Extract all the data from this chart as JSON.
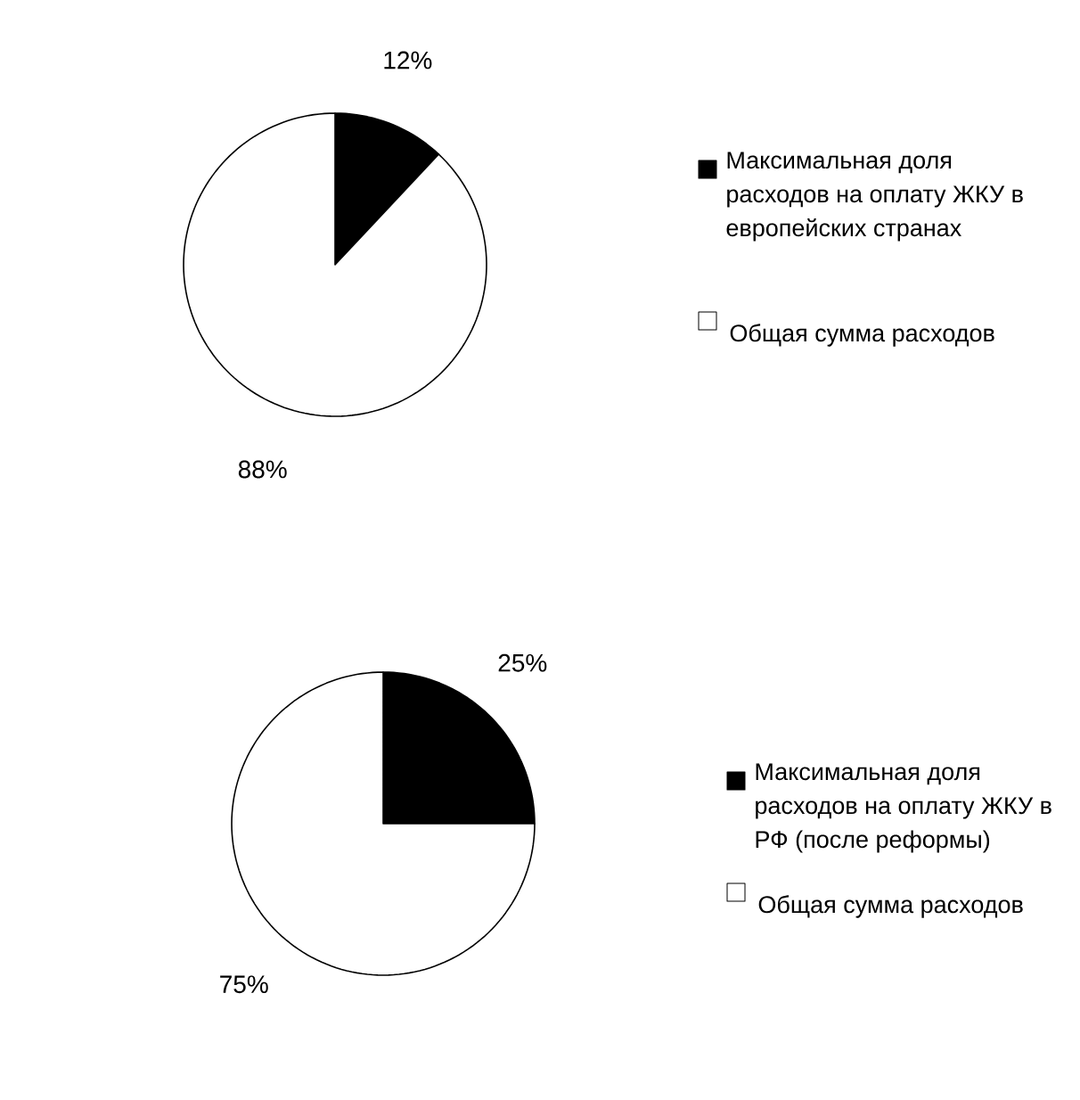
{
  "chart_data": [
    {
      "type": "pie",
      "categories": [
        "Максимальная доля расходов на оплату ЖКУ в европейских странах",
        "Общая сумма расходов"
      ],
      "values": [
        12,
        88
      ],
      "colors": [
        "#000000",
        "#ffffff"
      ],
      "value_labels": [
        "12%",
        "88%"
      ],
      "legend": "right"
    },
    {
      "type": "pie",
      "categories": [
        "Максимальная доля расходов на оплату ЖКУ в РФ (после реформы)",
        "Общая сумма расходов"
      ],
      "values": [
        25,
        75
      ],
      "colors": [
        "#000000",
        "#ffffff"
      ],
      "value_labels": [
        "25%",
        "75%"
      ],
      "legend": "right"
    }
  ]
}
